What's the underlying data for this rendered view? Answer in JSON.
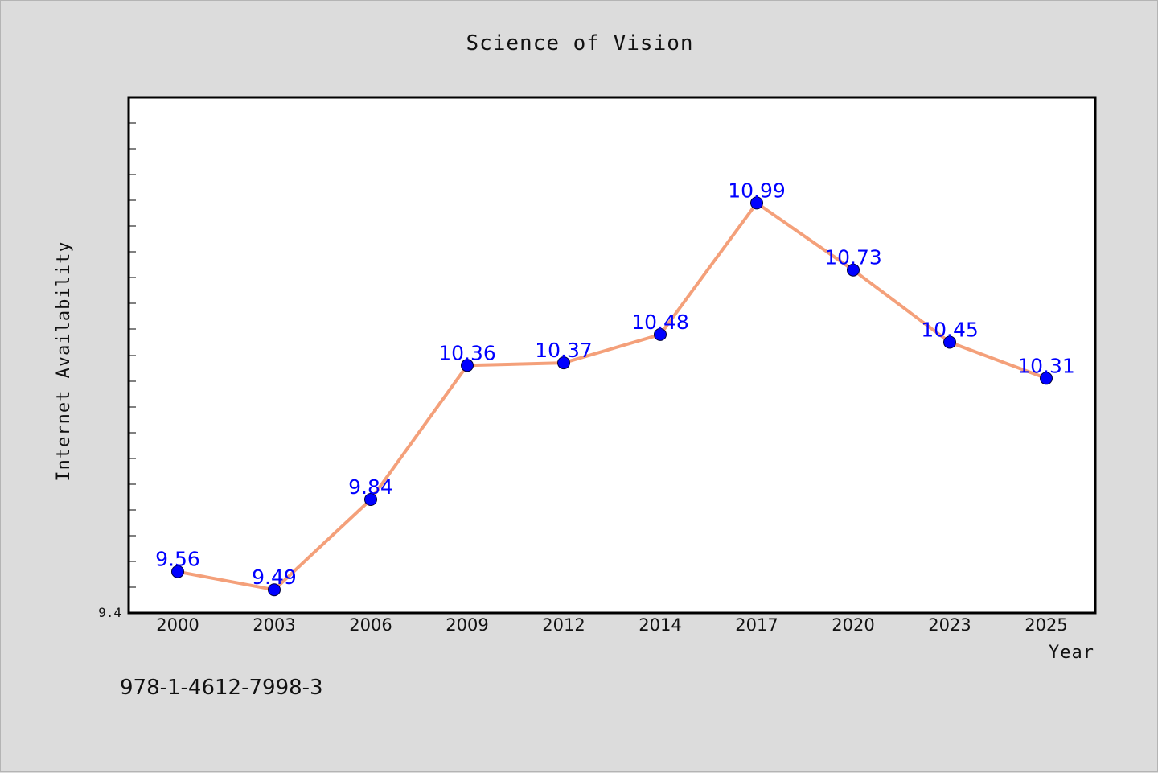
{
  "chart_data": {
    "type": "line",
    "title": "Science of Vision",
    "xlabel": "Year",
    "ylabel": "Internet Availability",
    "categories": [
      "2000",
      "2003",
      "2006",
      "2009",
      "2012",
      "2014",
      "2017",
      "2020",
      "2023",
      "2025"
    ],
    "series": [
      {
        "values": [
          9.56,
          9.49,
          9.84,
          10.36,
          10.37,
          10.48,
          10.99,
          10.73,
          10.45,
          10.31
        ]
      }
    ],
    "data_labels": [
      "9.56",
      "9.49",
      "9.84",
      "10.36",
      "10.37",
      "10.48",
      "10.99",
      "10.73",
      "10.45",
      "10.31"
    ],
    "ylim": [
      9.4,
      11.4
    ],
    "yticks_labeled": [
      "9.4"
    ],
    "grid": false,
    "legend": "none",
    "colors": {
      "line": "#f4a07a",
      "marker": "#0000ff",
      "data_label": "#0000ff",
      "plot_background": "#ffffff",
      "page_background": "#dcdcdc"
    }
  },
  "footer": {
    "code": "978-1-4612-7998-3"
  }
}
